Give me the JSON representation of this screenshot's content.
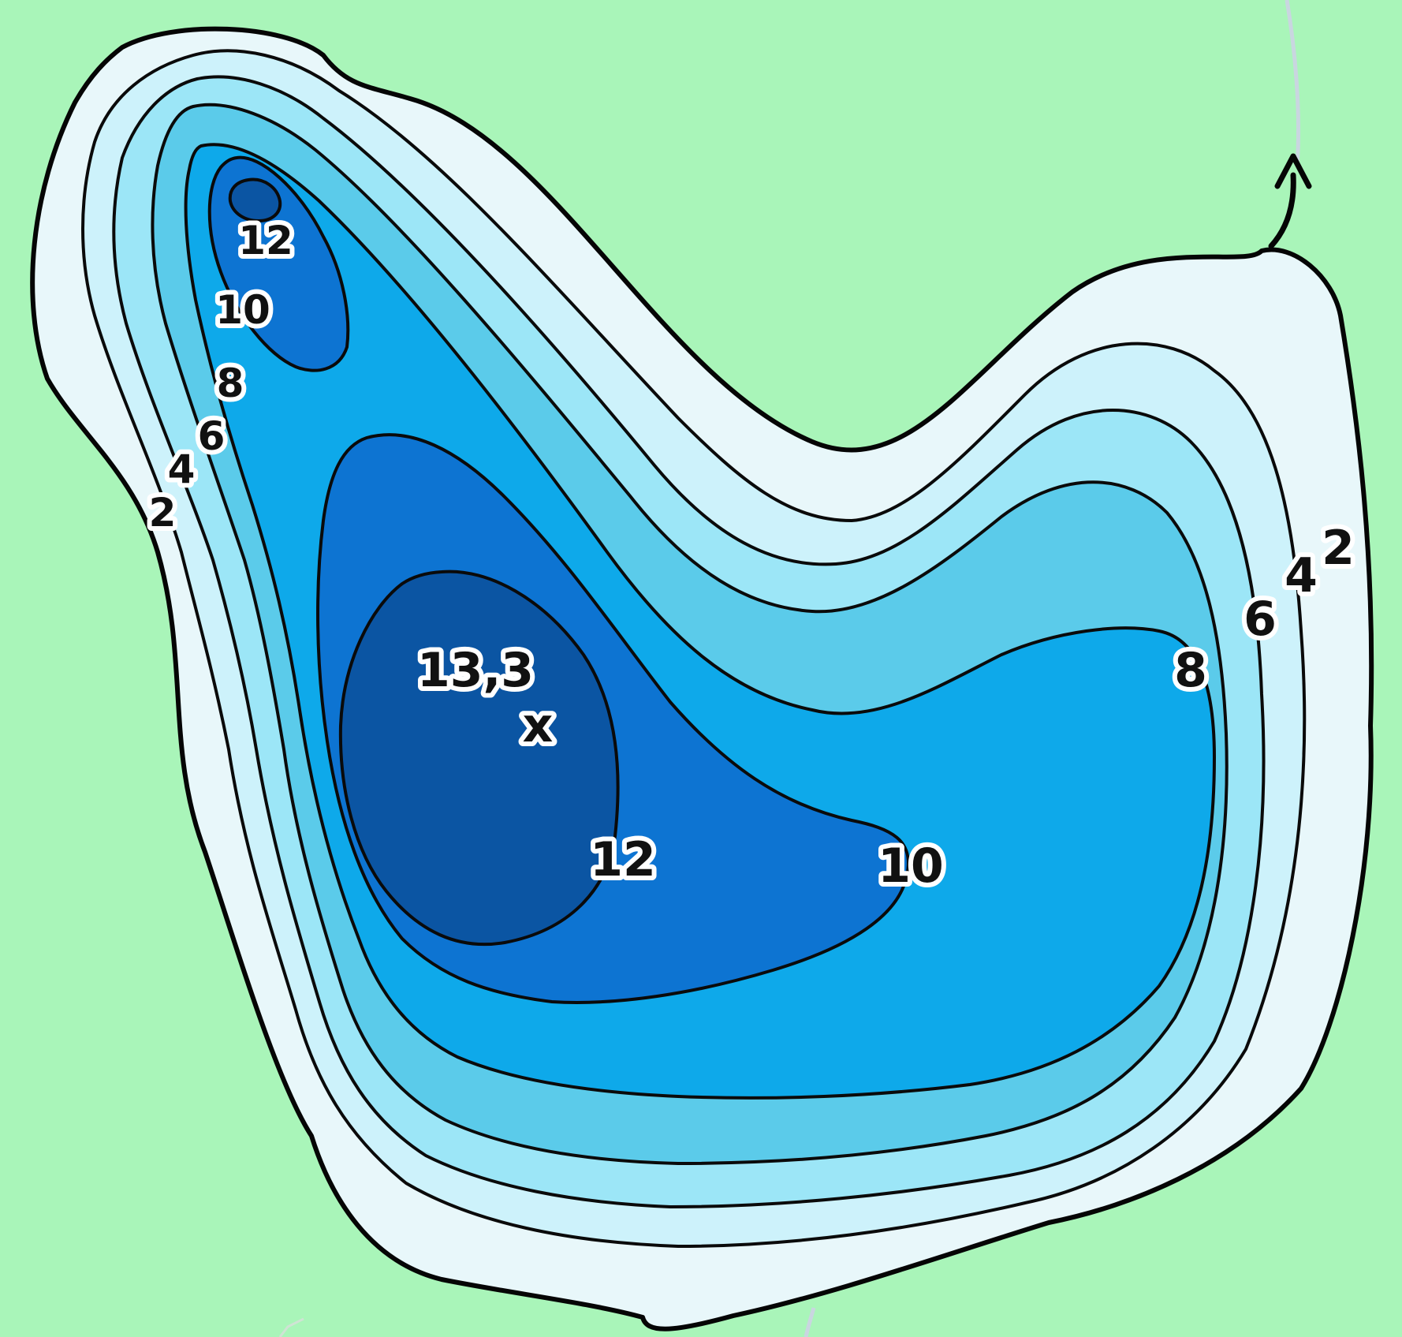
{
  "colors": {
    "land": "#a9f5b9",
    "depth_0_2": "#e8f7fa",
    "depth_2_4": "#cdf2fb",
    "depth_4_6": "#9ce6f7",
    "depth_6_8": "#5bcbea",
    "depth_8_10": "#0ea9ea",
    "depth_10_12": "#0d74d2",
    "depth_12_plus": "#0b55a3",
    "stream": "#c9d6e0",
    "contour_line": "#0a0a0a"
  },
  "map": {
    "contour_levels": [
      2,
      4,
      6,
      8,
      10,
      12
    ],
    "max_depth_label": "13,3",
    "max_depth_marker": "x",
    "labels_west": [
      "12",
      "10",
      "8",
      "6",
      "4",
      "2"
    ],
    "labels_east": [
      "2",
      "4",
      "6",
      "8"
    ],
    "labels_center": [
      "12",
      "10"
    ],
    "outflow_icon": "arrow-up-icon"
  }
}
